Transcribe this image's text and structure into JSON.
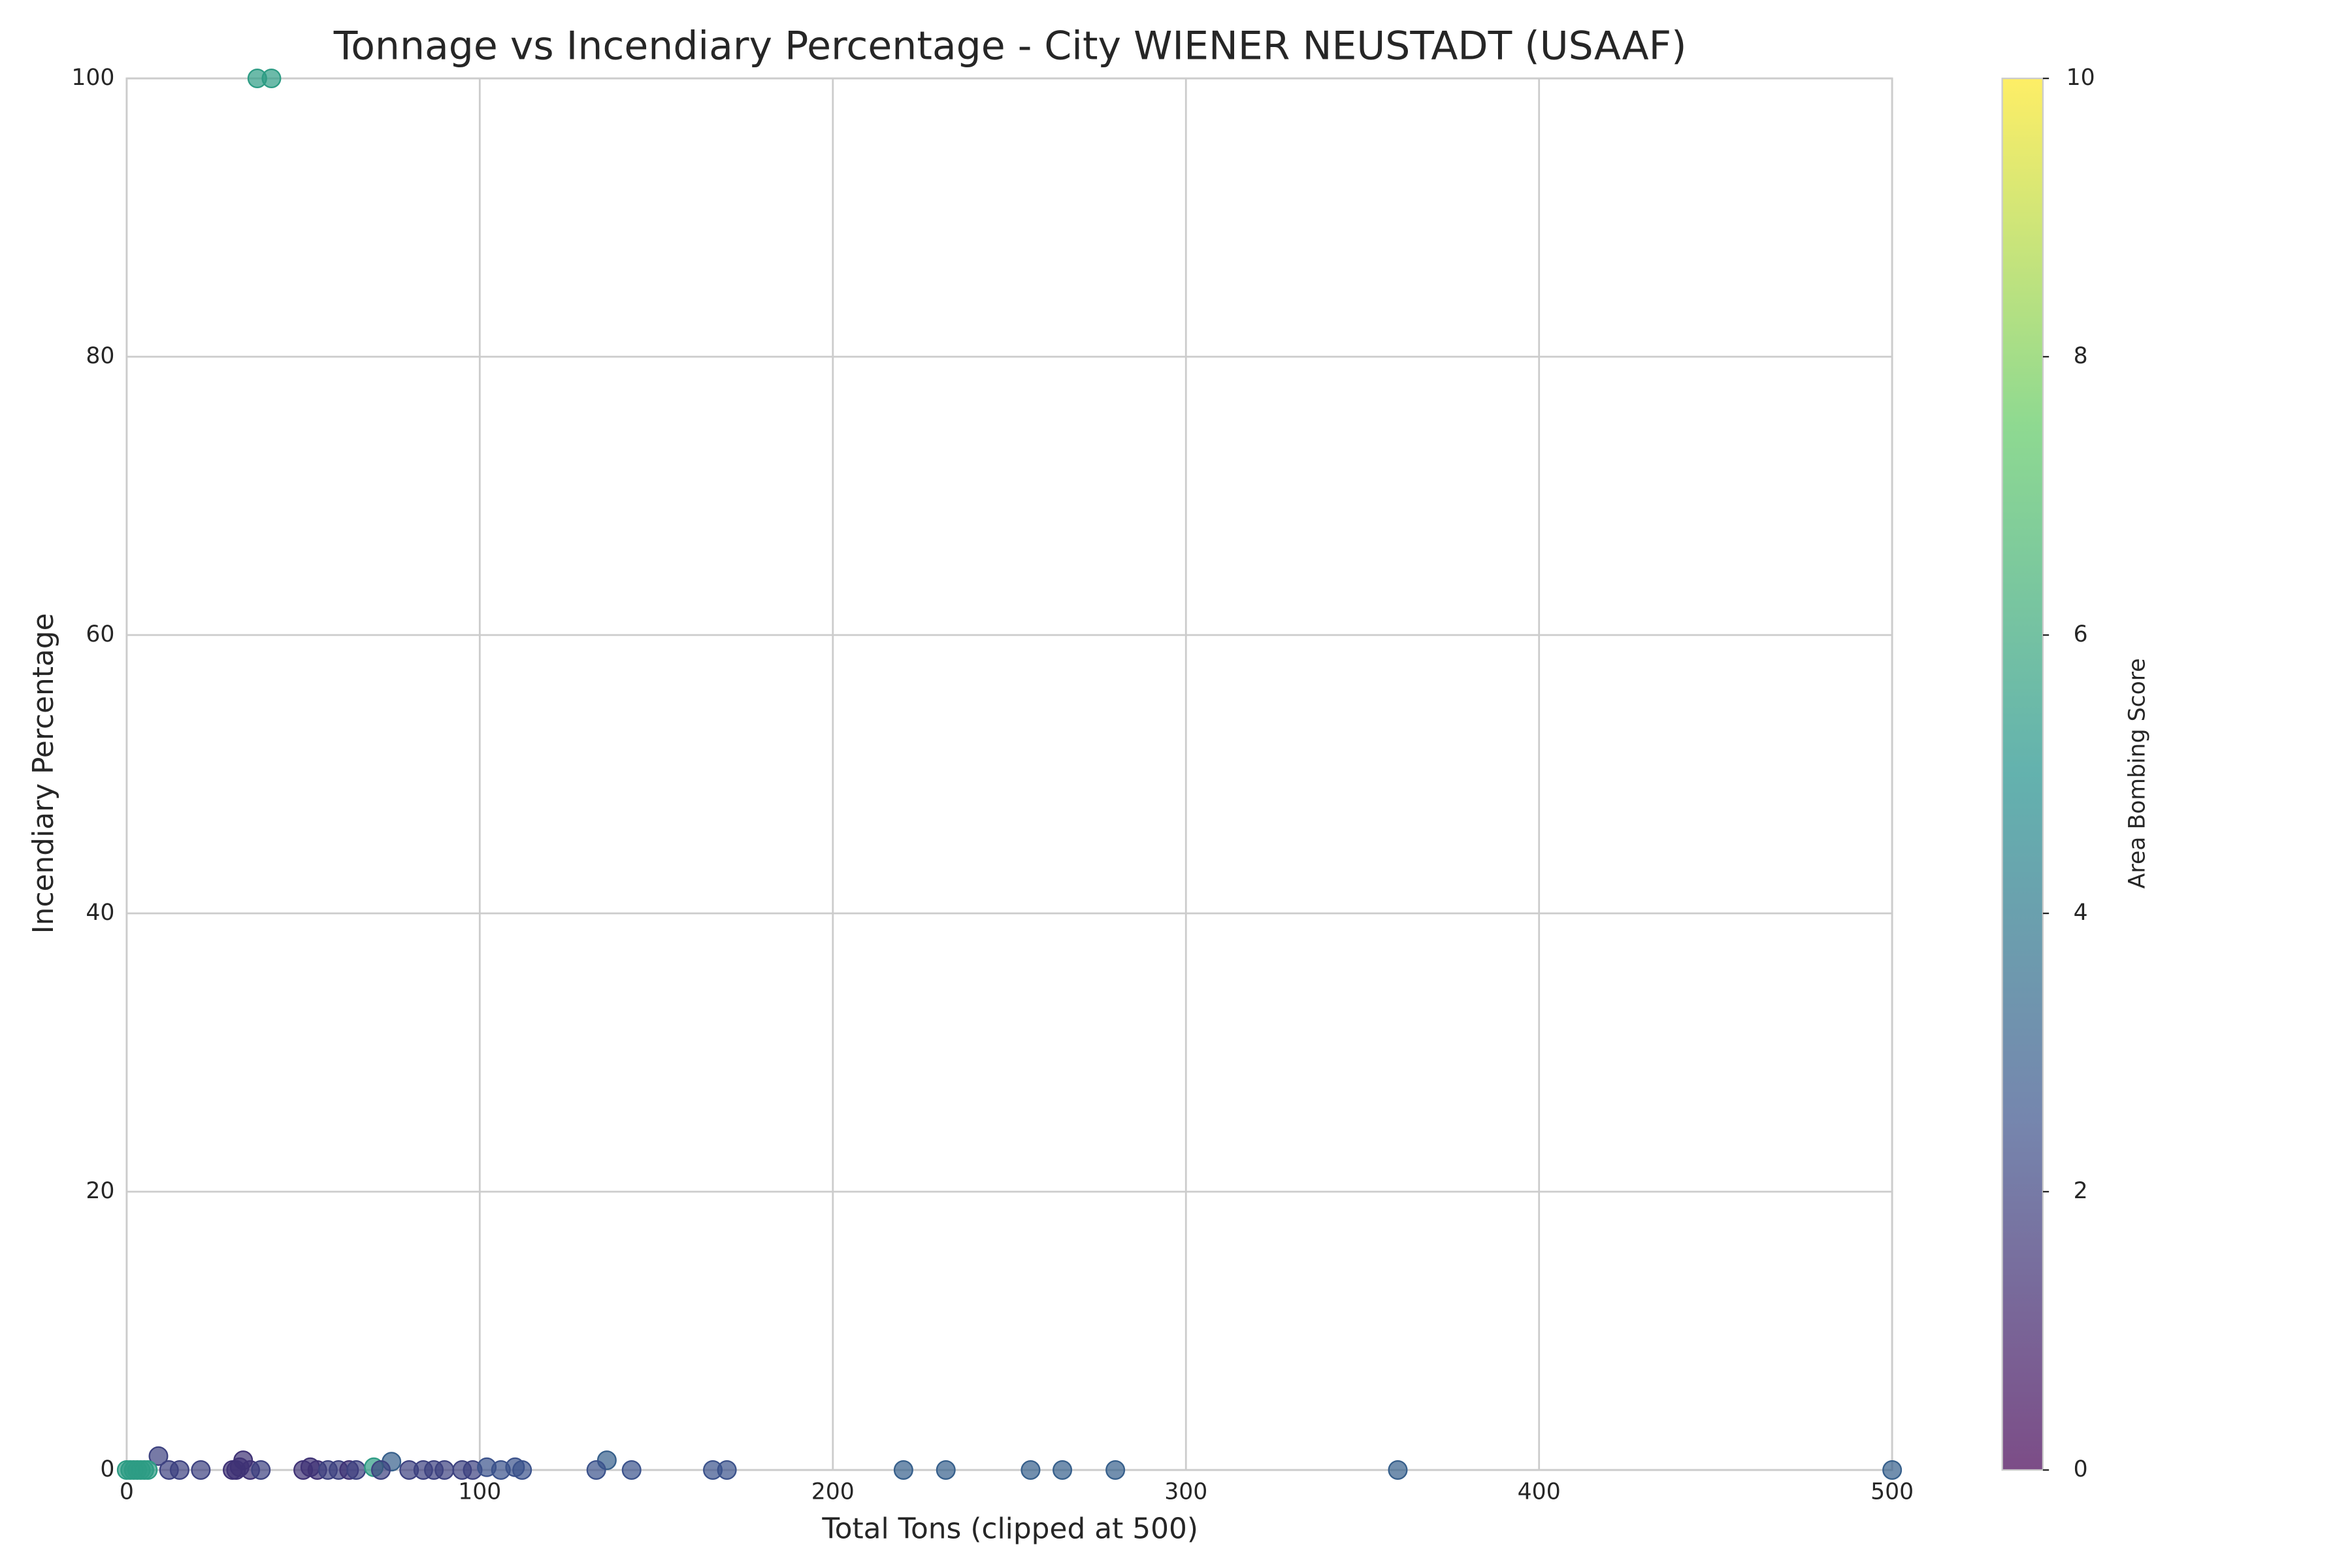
{
  "chart_data": {
    "type": "scatter",
    "title": "Tonnage vs Incendiary Percentage - City WIENER NEUSTADT (USAAF)",
    "xlabel": "Total Tons (clipped at 500)",
    "ylabel": "Incendiary Percentage",
    "colorbar_label": "Area Bombing Score",
    "colormap": "viridis",
    "x": [
      37,
      41,
      9,
      33,
      75,
      136,
      0,
      1,
      2,
      3,
      4,
      5,
      6,
      12,
      15,
      21,
      30,
      31,
      32,
      35,
      38,
      50,
      52,
      54,
      57,
      60,
      63,
      65,
      70,
      72,
      80,
      84,
      87,
      90,
      95,
      98,
      102,
      106,
      110,
      112,
      133,
      143,
      166,
      170,
      220,
      232,
      256,
      265,
      280,
      360,
      500
    ],
    "y": [
      100,
      100,
      1,
      0.7,
      0.6,
      0.7,
      0,
      0,
      0,
      0,
      0,
      0,
      0,
      0,
      0,
      0,
      0,
      0,
      0.2,
      0,
      0,
      0,
      0.2,
      0,
      0,
      0,
      0,
      0,
      0.2,
      0,
      0,
      0,
      0,
      0,
      0,
      0,
      0.2,
      0,
      0.2,
      0,
      0,
      0,
      0,
      0,
      0,
      0,
      0,
      0,
      0,
      0,
      0
    ],
    "c": [
      5.5,
      5.5,
      2,
      1.5,
      3,
      3,
      5.5,
      5.5,
      5.5,
      5.5,
      5.5,
      5.5,
      5.5,
      2,
      2,
      2,
      1.5,
      1.5,
      1.5,
      1.5,
      2,
      1.5,
      1.5,
      1.5,
      2,
      2,
      1.5,
      2,
      5.5,
      2,
      2,
      2,
      2,
      2,
      2,
      2,
      2.5,
      2.5,
      2.5,
      2.5,
      2.5,
      2.5,
      2.5,
      2.5,
      3,
      3,
      3,
      3,
      3,
      3,
      3
    ],
    "xlim": [
      0,
      500
    ],
    "xticks": [
      0,
      100,
      200,
      300,
      400,
      500
    ],
    "ylim": [
      0,
      100
    ],
    "yticks": [
      0,
      20,
      40,
      60,
      80,
      100
    ],
    "clim": [
      0,
      10
    ],
    "cticks": [
      0,
      2,
      4,
      6,
      8,
      10
    ],
    "grid": true
  }
}
